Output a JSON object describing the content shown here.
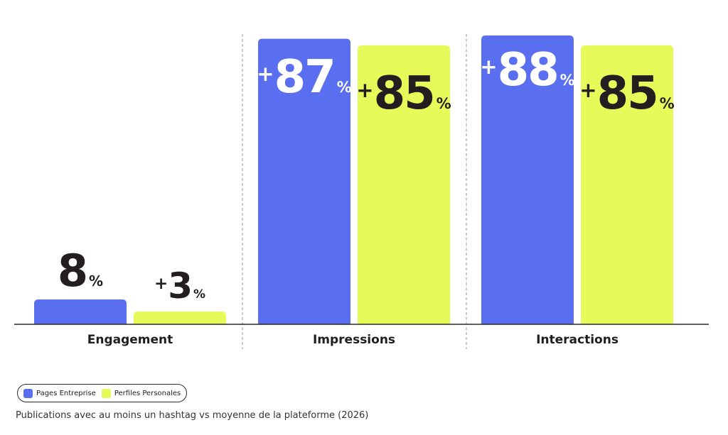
{
  "chart_data": {
    "type": "bar",
    "categories": [
      "Engagement",
      "Impressions",
      "Interactions"
    ],
    "series": [
      {
        "name": "Pages Entreprise",
        "color": "#5a6ff0",
        "values": [
          8,
          87,
          88
        ],
        "labels": [
          {
            "prefix": "",
            "number": "8",
            "suffix": "%"
          },
          {
            "prefix": "+",
            "number": "87",
            "suffix": "%"
          },
          {
            "prefix": "+",
            "number": "88",
            "suffix": "%"
          }
        ]
      },
      {
        "name": "Perfiles Personales",
        "color": "#e6fb5a",
        "values": [
          3,
          85,
          85
        ],
        "labels": [
          {
            "prefix": "+",
            "number": "3",
            "suffix": "%"
          },
          {
            "prefix": "+",
            "number": "85",
            "suffix": "%"
          },
          {
            "prefix": "+",
            "number": "85",
            "suffix": "%"
          }
        ]
      }
    ],
    "ylim": [
      0,
      90
    ],
    "legend_position": "bottom-left",
    "grid": false
  },
  "caption": "Publications avec au moins un hashtag vs moyenne de la plateforme (2026)"
}
